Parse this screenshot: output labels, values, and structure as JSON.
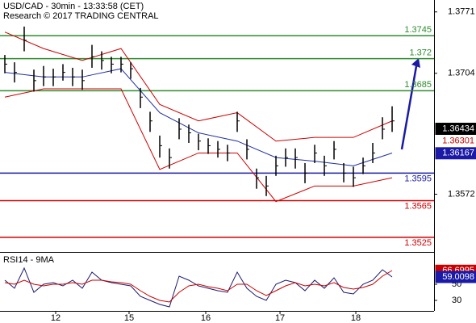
{
  "chart_data": {
    "type": "ohlc",
    "title": "USD/CAD - 30min - 13:33:58 (CET)",
    "subtitle": "Research © 2017 TRADING CENTRAL",
    "x": [
      0,
      1,
      2,
      3,
      4,
      5,
      6,
      7,
      8,
      9,
      10,
      11,
      12,
      13,
      14,
      15,
      16,
      17,
      18,
      19,
      20,
      21,
      22,
      23,
      24,
      25,
      26,
      27,
      28,
      29,
      30,
      31,
      32,
      33,
      34,
      35,
      36,
      37,
      38,
      39,
      40
    ],
    "xlim": [
      -0.5,
      44.33
    ],
    "xticks": [
      {
        "value": 5.25,
        "label": "12"
      },
      {
        "value": 12.83,
        "label": "15"
      },
      {
        "value": 20.75,
        "label": "16"
      },
      {
        "value": 28.42,
        "label": "17"
      },
      {
        "value": 36.25,
        "label": "18"
      }
    ],
    "ylim": [
      1.3509,
      1.3784
    ],
    "yticks": [
      1.3771,
      1.3704,
      1.3572
    ],
    "color": "#000000",
    "high": [
      1.3724,
      1.3716,
      1.3755,
      1.3708,
      1.3712,
      1.3709,
      1.3714,
      1.371,
      1.3708,
      1.3735,
      1.3728,
      1.3722,
      1.3722,
      1.3716,
      1.3688,
      1.3662,
      1.3636,
      1.3622,
      1.3655,
      1.3648,
      1.3638,
      1.3633,
      1.363,
      1.3626,
      1.3662,
      1.3632,
      1.36,
      1.3592,
      1.3614,
      1.3622,
      1.3622,
      1.3606,
      1.3626,
      1.3614,
      1.363,
      1.3606,
      1.3602,
      1.3612,
      1.3628,
      1.3656,
      1.3668
    ],
    "low": [
      1.3704,
      1.3694,
      1.3728,
      1.3684,
      1.369,
      1.369,
      1.3696,
      1.369,
      1.3686,
      1.371,
      1.3708,
      1.3704,
      1.3705,
      1.3698,
      1.3666,
      1.364,
      1.3612,
      1.36,
      1.3632,
      1.3628,
      1.362,
      1.3616,
      1.3612,
      1.3608,
      1.364,
      1.361,
      1.3578,
      1.357,
      1.3592,
      1.3602,
      1.36,
      1.3584,
      1.3606,
      1.3592,
      1.361,
      1.3585,
      1.358,
      1.3594,
      1.3606,
      1.3632,
      1.364
    ],
    "close": [
      1.3714,
      1.3705,
      1.374,
      1.3696,
      1.37,
      1.37,
      1.3705,
      1.37,
      1.3696,
      1.3722,
      1.3718,
      1.3714,
      1.3714,
      1.3709,
      1.3678,
      1.3652,
      1.3625,
      1.3612,
      1.3643,
      1.3639,
      1.363,
      1.3625,
      1.3621,
      1.3617,
      1.3652,
      1.3621,
      1.359,
      1.3581,
      1.3603,
      1.3612,
      1.3612,
      1.3595,
      1.3617,
      1.3603,
      1.3621,
      1.3595,
      1.359,
      1.3603,
      1.3617,
      1.3643,
      1.3652
    ],
    "bands": {
      "x": [
        0,
        4,
        8,
        12,
        16,
        20,
        24,
        28,
        32,
        36,
        40
      ],
      "upper": [
        1.3749,
        1.3731,
        1.3718,
        1.3731,
        1.367,
        1.3652,
        1.3661,
        1.363,
        1.3634,
        1.3634,
        1.3652
      ],
      "lower": [
        1.3678,
        1.3687,
        1.3687,
        1.3687,
        1.3599,
        1.3617,
        1.3617,
        1.3564,
        1.3581,
        1.3581,
        1.359
      ],
      "middle": [
        1.3705,
        1.37,
        1.37,
        1.3709,
        1.3661,
        1.3639,
        1.363,
        1.3612,
        1.3608,
        1.3603,
        1.3617
      ],
      "band_color": "#cc0000",
      "middle_color": "#1f2fa0"
    },
    "levels": [
      {
        "value": 1.3745,
        "color": "#2e8b2e"
      },
      {
        "value": 1.372,
        "color": "#2e8b2e"
      },
      {
        "value": 1.3685,
        "color": "#2e8b2e"
      },
      {
        "value": 1.3595,
        "color": "#1a1aa6"
      },
      {
        "value": 1.3565,
        "color": "#cc0000"
      },
      {
        "value": 1.3525,
        "color": "#cc0000"
      }
    ],
    "price_tags": [
      {
        "value": 1.36434,
        "color": "#000000",
        "text_color": "#ffffff"
      },
      {
        "value": 1.36301,
        "color": "#ffffff",
        "text_color": "#cc0000"
      },
      {
        "value": 1.36167,
        "color": "#1a1aa6",
        "text_color": "#ffffff"
      }
    ],
    "rsi": {
      "title": "RSI14 - 9MA",
      "ylim": [
        17,
        87
      ],
      "yticks": [
        30,
        50
      ],
      "series": [
        {
          "color": "#1a1a6e",
          "values": [
            55,
            45,
            70,
            40,
            50,
            52,
            48,
            55,
            45,
            65,
            55,
            52,
            50,
            48,
            35,
            30,
            25,
            22,
            60,
            55,
            48,
            45,
            42,
            40,
            65,
            45,
            35,
            30,
            50,
            55,
            52,
            42,
            55,
            45,
            58,
            40,
            38,
            50,
            55,
            68,
            59
          ]
        },
        {
          "color": "#cc0000",
          "values": [
            52,
            50,
            55,
            50,
            48,
            50,
            50,
            52,
            50,
            55,
            55,
            53,
            52,
            50,
            42,
            35,
            30,
            28,
            40,
            48,
            50,
            47,
            45,
            42,
            50,
            50,
            42,
            36,
            42,
            48,
            52,
            48,
            50,
            48,
            52,
            46,
            44,
            46,
            50,
            60,
            67
          ]
        }
      ],
      "tags": [
        {
          "value": 66.6995,
          "color": "#cc0000",
          "text_color": "#ffffff"
        },
        {
          "value": 59.0098,
          "color": "#1a1aa6",
          "text_color": "#ffffff"
        }
      ]
    }
  }
}
